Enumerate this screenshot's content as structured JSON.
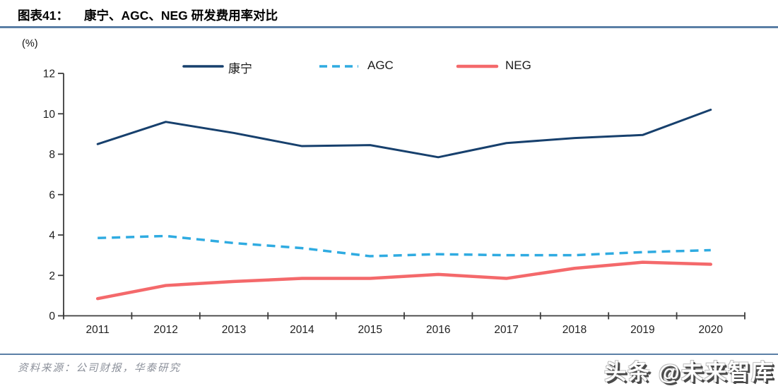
{
  "header": {
    "figure_label": "图表41：",
    "title": "康宁、AGC、NEG 研发费用率对比"
  },
  "chart_data": {
    "type": "line",
    "unit_label": "(%)",
    "categories": [
      "2011",
      "2012",
      "2013",
      "2014",
      "2015",
      "2016",
      "2017",
      "2018",
      "2019",
      "2020"
    ],
    "series": [
      {
        "name": "康宁",
        "color": "#17406d",
        "style": "solid",
        "values": [
          8.5,
          9.6,
          9.05,
          8.4,
          8.45,
          7.85,
          8.55,
          8.8,
          8.95,
          10.2
        ]
      },
      {
        "name": "AGC",
        "color": "#2fabe1",
        "style": "dashed",
        "values": [
          3.85,
          3.95,
          3.6,
          3.35,
          2.95,
          3.05,
          3.0,
          3.0,
          3.15,
          3.25
        ]
      },
      {
        "name": "NEG",
        "color": "#f4696b",
        "style": "solid",
        "values": [
          0.85,
          1.5,
          1.7,
          1.85,
          1.85,
          2.05,
          1.85,
          2.35,
          2.65,
          2.55
        ]
      }
    ],
    "ylim": [
      0,
      12
    ],
    "ytick_step": 2,
    "legend_position": "top",
    "grid": false
  },
  "footer": {
    "source": "资料来源：公司财报，华泰研究",
    "watermark": "头条 @未来智库"
  },
  "colors": {
    "rule": "#5b7fa6",
    "axis": "#3c3c3c",
    "tick_label": "#1f1f1f"
  }
}
